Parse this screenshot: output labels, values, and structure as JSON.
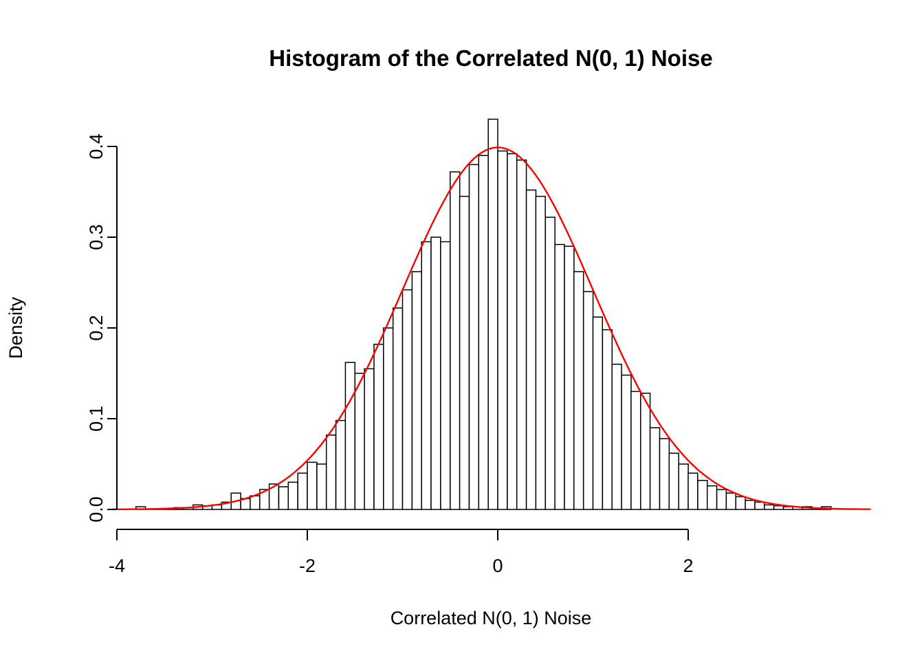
{
  "figure": {
    "background": "#ffffff"
  },
  "chart_data": {
    "type": "histogram",
    "title": "Histogram of the Correlated N(0, 1) Noise",
    "xlabel": "Correlated N(0, 1) Noise",
    "ylabel": "Density",
    "xlim": [
      -4,
      3.9
    ],
    "ylim": [
      0,
      0.44
    ],
    "grid": false,
    "legend": "none",
    "x_ticks": [
      -4,
      -2,
      0,
      2
    ],
    "x_tick_labels": [
      "-4",
      "-2",
      "0",
      "2"
    ],
    "y_ticks": [
      0,
      0.1,
      0.2,
      0.3,
      0.4
    ],
    "y_tick_labels": [
      "0.0",
      "0.1",
      "0.2",
      "0.3",
      "0.4"
    ],
    "bar_fill": "#ffffff",
    "bar_stroke": "#000000",
    "bin_start": -3.8,
    "bin_width": 0.1,
    "densities": [
      0.003,
      0,
      0,
      0,
      0.002,
      0.002,
      0.005,
      0.004,
      0.005,
      0.008,
      0.018,
      0.012,
      0.015,
      0.022,
      0.028,
      0.025,
      0.03,
      0.04,
      0.052,
      0.05,
      0.082,
      0.098,
      0.162,
      0.15,
      0.155,
      0.182,
      0.2,
      0.222,
      0.242,
      0.262,
      0.295,
      0.3,
      0.295,
      0.372,
      0.345,
      0.38,
      0.39,
      0.43,
      0.395,
      0.392,
      0.385,
      0.352,
      0.345,
      0.322,
      0.292,
      0.29,
      0.262,
      0.24,
      0.212,
      0.198,
      0.16,
      0.148,
      0.13,
      0.128,
      0.09,
      0.078,
      0.062,
      0.05,
      0.04,
      0.032,
      0.026,
      0.022,
      0.018,
      0.014,
      0.01,
      0.008,
      0.005,
      0.004,
      0.003,
      0,
      0.003,
      0,
      0.003
    ],
    "curve": {
      "type": "normal-density",
      "mean": 0,
      "sd": 1,
      "color": "#ff0000",
      "x_from": -4.05,
      "x_to": 3.92
    }
  }
}
